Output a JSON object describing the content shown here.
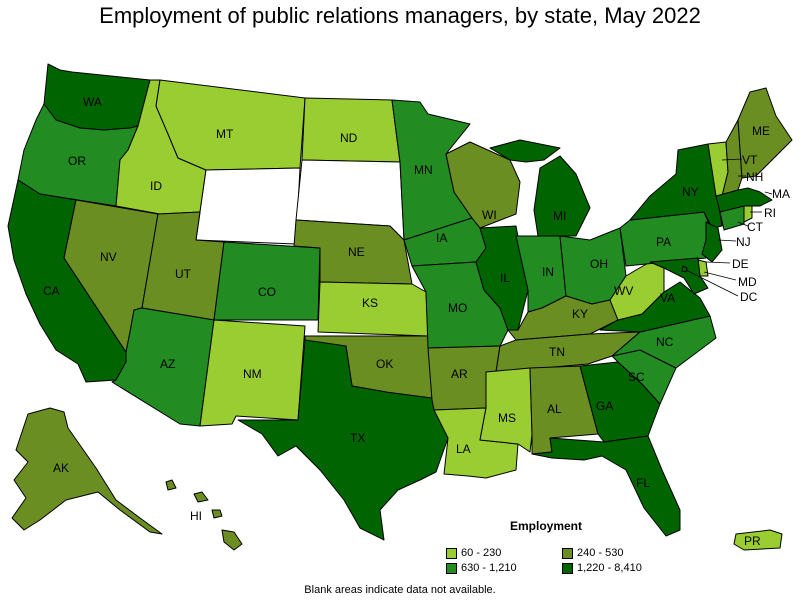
{
  "title": "Employment of public relations managers, by state, May 2022",
  "legend": {
    "title": "Employment",
    "items": [
      {
        "label": "60 - 230",
        "color": "#9acd32"
      },
      {
        "label": "240 - 530",
        "color": "#6b8e23"
      },
      {
        "label": "630 - 1,210",
        "color": "#228b22"
      },
      {
        "label": "1,220 - 8,410",
        "color": "#006400"
      }
    ]
  },
  "footnote": "Blank areas indicate data not available.",
  "states": [
    {
      "abbr": "WA",
      "bin": 3
    },
    {
      "abbr": "OR",
      "bin": 2
    },
    {
      "abbr": "CA",
      "bin": 3
    },
    {
      "abbr": "NV",
      "bin": 1
    },
    {
      "abbr": "ID",
      "bin": 0
    },
    {
      "abbr": "MT",
      "bin": 0
    },
    {
      "abbr": "WY",
      "bin": null
    },
    {
      "abbr": "UT",
      "bin": 1
    },
    {
      "abbr": "AZ",
      "bin": 2
    },
    {
      "abbr": "CO",
      "bin": 2
    },
    {
      "abbr": "NM",
      "bin": 0
    },
    {
      "abbr": "ND",
      "bin": 0
    },
    {
      "abbr": "SD",
      "bin": null
    },
    {
      "abbr": "NE",
      "bin": 1
    },
    {
      "abbr": "KS",
      "bin": 0
    },
    {
      "abbr": "OK",
      "bin": 1
    },
    {
      "abbr": "TX",
      "bin": 3
    },
    {
      "abbr": "MN",
      "bin": 2
    },
    {
      "abbr": "IA",
      "bin": 2
    },
    {
      "abbr": "MO",
      "bin": 2
    },
    {
      "abbr": "AR",
      "bin": 1
    },
    {
      "abbr": "LA",
      "bin": 0
    },
    {
      "abbr": "WI",
      "bin": 1
    },
    {
      "abbr": "IL",
      "bin": 3
    },
    {
      "abbr": "MI",
      "bin": 3
    },
    {
      "abbr": "IN",
      "bin": 2
    },
    {
      "abbr": "OH",
      "bin": 2
    },
    {
      "abbr": "KY",
      "bin": 1
    },
    {
      "abbr": "TN",
      "bin": 1
    },
    {
      "abbr": "MS",
      "bin": 0
    },
    {
      "abbr": "AL",
      "bin": 1
    },
    {
      "abbr": "GA",
      "bin": 3
    },
    {
      "abbr": "FL",
      "bin": 3
    },
    {
      "abbr": "SC",
      "bin": 2
    },
    {
      "abbr": "NC",
      "bin": 2
    },
    {
      "abbr": "VA",
      "bin": 3
    },
    {
      "abbr": "WV",
      "bin": 0
    },
    {
      "abbr": "PA",
      "bin": 2
    },
    {
      "abbr": "NY",
      "bin": 3
    },
    {
      "abbr": "ME",
      "bin": 1
    },
    {
      "abbr": "VT",
      "bin": 0
    },
    {
      "abbr": "NH",
      "bin": 1
    },
    {
      "abbr": "MA",
      "bin": 3
    },
    {
      "abbr": "RI",
      "bin": 0
    },
    {
      "abbr": "CT",
      "bin": 2
    },
    {
      "abbr": "NJ",
      "bin": 3
    },
    {
      "abbr": "DE",
      "bin": 0
    },
    {
      "abbr": "MD",
      "bin": 3
    },
    {
      "abbr": "DC",
      "bin": 3
    },
    {
      "abbr": "AK",
      "bin": 1
    },
    {
      "abbr": "HI",
      "bin": 1
    },
    {
      "abbr": "PR",
      "bin": 0
    }
  ]
}
